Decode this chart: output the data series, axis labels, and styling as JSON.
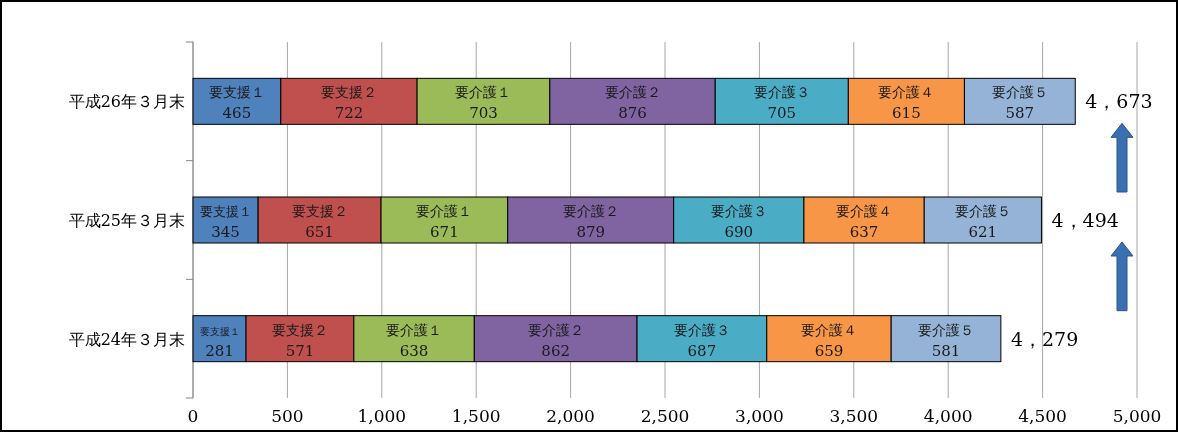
{
  "chart_data": {
    "type": "bar",
    "orientation": "horizontal",
    "stacked": true,
    "data_labels": true,
    "grid": "x",
    "categories": [
      "平成26年３月末",
      "平成25年３月末",
      "平成24年３月末"
    ],
    "series": [
      {
        "name": "要支援１",
        "color": "#4f81bd",
        "values": [
          465,
          345,
          281
        ]
      },
      {
        "name": "要支援２",
        "color": "#c0504d",
        "values": [
          722,
          651,
          571
        ]
      },
      {
        "name": "要介護１",
        "color": "#9bbb59",
        "values": [
          703,
          671,
          638
        ]
      },
      {
        "name": "要介護２",
        "color": "#8064a2",
        "values": [
          876,
          879,
          862
        ]
      },
      {
        "name": "要介護３",
        "color": "#4bacc6",
        "values": [
          705,
          690,
          687
        ]
      },
      {
        "name": "要介護４",
        "color": "#f79646",
        "values": [
          615,
          637,
          659
        ]
      },
      {
        "name": "要介護５",
        "color": "#95b3d7",
        "values": [
          587,
          621,
          581
        ]
      }
    ],
    "totals": [
      "4，673",
      "4，494",
      "4，279"
    ],
    "xlim": [
      0,
      5000
    ],
    "xticks": [
      0,
      500,
      {
        "value": 1000,
        "label": "1,000"
      },
      {
        "value": 1500,
        "label": "1,500"
      },
      {
        "value": 2000,
        "label": "2,000"
      },
      {
        "value": 2500,
        "label": "2,500"
      },
      {
        "value": 3000,
        "label": "3,000"
      },
      {
        "value": 3500,
        "label": "3,500"
      },
      {
        "value": 4000,
        "label": "4,000"
      },
      {
        "value": 4500,
        "label": "4,500"
      },
      {
        "value": 5000,
        "label": "5,000"
      }
    ]
  }
}
